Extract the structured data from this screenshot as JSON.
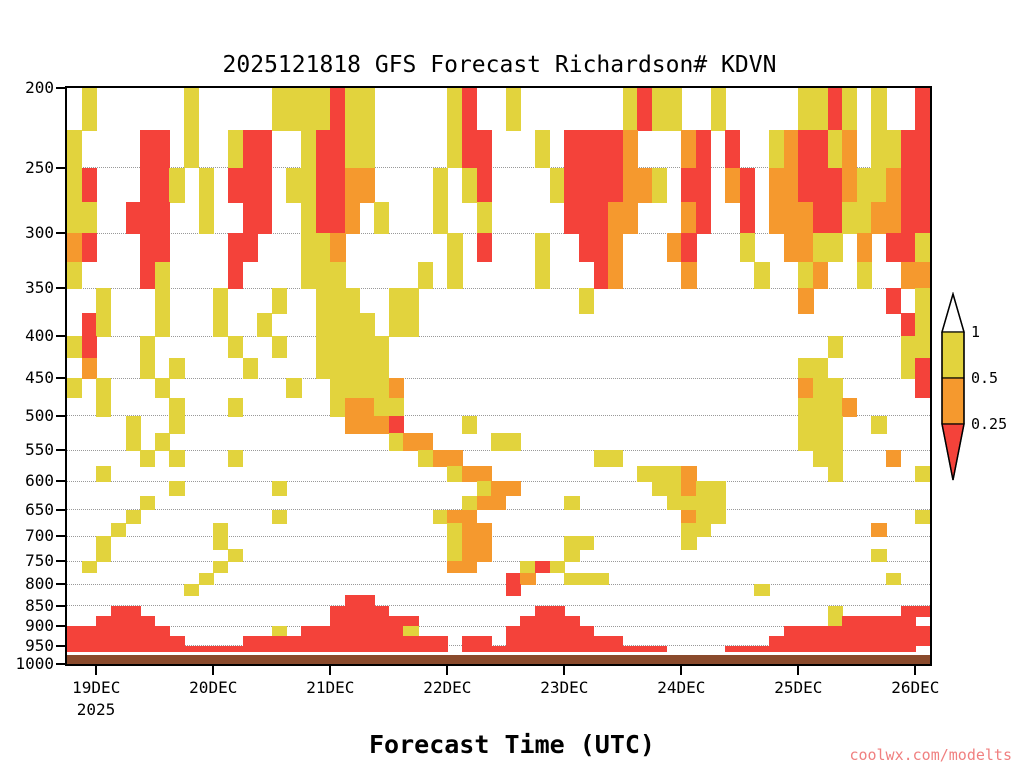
{
  "title": "2025121818 GFS Forecast Richardson# KDVN",
  "xlabel": "Forecast Time (UTC)",
  "watermark": {
    "text": "coolwx.com/modelts",
    "color": "#f08080"
  },
  "x_axis": {
    "year": "2025",
    "ticks": [
      {
        "label": "19DEC",
        "col": 2
      },
      {
        "label": "20DEC",
        "col": 10
      },
      {
        "label": "21DEC",
        "col": 18
      },
      {
        "label": "22DEC",
        "col": 26
      },
      {
        "label": "23DEC",
        "col": 34
      },
      {
        "label": "24DEC",
        "col": 42
      },
      {
        "label": "25DEC",
        "col": 50
      },
      {
        "label": "26DEC",
        "col": 58
      }
    ]
  },
  "y_axis": {
    "top": 200,
    "bottom": 1000,
    "scale": "log",
    "ticks": [
      200,
      250,
      300,
      350,
      400,
      450,
      500,
      550,
      600,
      650,
      700,
      750,
      800,
      850,
      900,
      950,
      1000
    ]
  },
  "legend": {
    "labels": [
      "1",
      "0.5",
      "0.25"
    ],
    "colors": {
      "above": "#ffffff",
      "high": "#e2d33d",
      "mid": "#f5992e",
      "low": "#f4423a"
    },
    "ranges": {
      "above": "Richardson number above 1",
      "high": "0.5 to 1",
      "mid": "0.25 to 0.5",
      "low": "below 0.25"
    }
  },
  "chart_data": {
    "type": "heatmap",
    "title": "2025121818 GFS Forecast Richardson# KDVN",
    "xlabel": "Forecast Time (UTC)",
    "x_ticks": [
      "19DEC",
      "20DEC",
      "21DEC",
      "22DEC",
      "23DEC",
      "24DEC",
      "25DEC",
      "26DEC"
    ],
    "y_ticks": [
      200,
      250,
      300,
      350,
      400,
      450,
      500,
      550,
      600,
      650,
      700,
      750,
      800,
      850,
      900,
      950,
      1000
    ],
    "legend_thresholds": [
      1,
      0.5,
      0.25
    ],
    "col_count": 59,
    "p_top": 200,
    "p_step": 25,
    "surface_pressure": 968,
    "colors": {
      "y": "#e2d33d",
      "o": "#f5992e",
      "r": "#f4423a",
      "b": "#8a4a2c"
    },
    "cell_meaning": {
      "y": "Ri 0.5-1",
      "o": "Ri 0.25-0.5",
      "r": "Ri below 0.25",
      "b": "below ground terrain",
      ".": "Ri above 1 (clear)"
    },
    "grid": [
      ".y......y.....yyyyryy.....yr..y.......yryy..y.....yyry.y..r",
      "y....rr.y..yrr..yrryy.....yrr...y.rrrro...or.r..yorryo.yyrr",
      "yr...rry.y.rrr.yyrroo....y.yr....yrrrrooy.rr.or.oorrroyyorr",
      "yy..rrr..y..rr..yrro.y...y..y.....rrroo...or..r.ooorryyoorr",
      "or...rr....rr...yyo.......y.r...y..rro...or...y..ooyy.o.rry",
      "y....ry....r....yyy.....y.y.....y...ro....o....y..yo..y..oo",
      "..y...y...y...y..yyy..yy...........y..............o.....r.y",
      ".ry...y...y..y...yyyy.yy.................................ry",
      "yr...y.....y..y..yyyyy..............................y....yy",
      ".o...y.y....y....yyyyy............................yy.....yr",
      "y.y...y........y..yyyyo...........................oyy.....r",
      "..y....y...y......yooyy...........................yyyo.....",
      "....y..y...........ooor....y......................yyy..y...",
      "....y.y...............yoo....yy...................yyy......",
      ".....y.y...y............yoo.........yy.............yy...o..",
      "..y.......................yoo..........yyyo.........y.....y",
      ".......y......y.............yoo.........yyoyy..............y",
      ".....y.....................yoo....y......yyyy..............",
      "....y.........y..........yoo..............oyy.............y",
      "...y......y...............yoo.............yy...........o.",
      "..y.......y...............yoo.....yy......y...............",
      "..y........y..............yoo.....y....................y",
      ".y........y...............oo...yry.......................",
      ".........y....................ro..yyy...................y",
      "........y.....................r................y......",
      "...................rr.....................................",
      "...rr.............rrrr..........rr..................y....rr..",
      "..rrrr............rrrrrr.......rrrr.................yrrrrr",
      "rrrrrrr.......y.rrrrrrry......rrrrrr.............rrrrrrrrrr",
      "rrrrrrrr....rrrrrrrrrrrrrr.rr.rrrrrrrr..........rrrrrrrrrrr",
      "rrrrrrrrrrrrrrrrrrrrrrrrrr.rrrrrrrrrrrrrr....rrrrrrrrrrrrr",
      "bbbbbbbbbbbbbbbbbbbbbbbbbbbbbbbbbbbbbbbbbbbbbbbbbbbbbbbbbbb"
    ]
  }
}
